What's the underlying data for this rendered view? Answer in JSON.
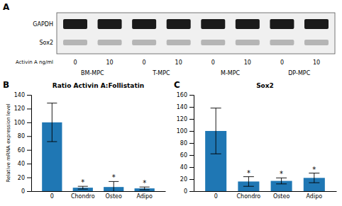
{
  "chart_data": [
    {
      "type": "blot",
      "label": "A",
      "rows": [
        "GAPDH",
        "Sox2"
      ],
      "x_label": "Activin A ng/ml",
      "categories": [
        "0",
        "10",
        "0",
        "10",
        "0",
        "10",
        "0",
        "10"
      ],
      "groups": [
        "BM-MPC",
        "T-MPC",
        "M-MPC",
        "DP-MPC"
      ]
    },
    {
      "type": "bar",
      "label": "B",
      "title": "Ratio Activin A:Follistatin",
      "ylabel": "Relative mRNA expression level",
      "categories": [
        "0",
        "Chondro",
        "Osteo",
        "Adipo"
      ],
      "values": [
        100,
        5,
        6,
        4
      ],
      "errors": [
        28,
        2,
        8,
        2
      ],
      "ylim": [
        0,
        140
      ],
      "yticks": [
        0,
        20,
        40,
        60,
        80,
        100,
        120,
        140
      ],
      "significance": [
        false,
        true,
        true,
        true
      ],
      "significance_label": "*"
    },
    {
      "type": "bar",
      "label": "C",
      "title": "Sox2",
      "categories": [
        "0",
        "Chondro",
        "Osteo",
        "Adipo"
      ],
      "values": [
        100,
        16,
        17,
        22
      ],
      "errors": [
        38,
        8,
        5,
        8
      ],
      "ylim": [
        0,
        160
      ],
      "yticks": [
        0,
        20,
        40,
        60,
        80,
        100,
        120,
        140,
        160
      ],
      "significance": [
        false,
        true,
        true,
        true
      ],
      "significance_label": "*"
    }
  ]
}
